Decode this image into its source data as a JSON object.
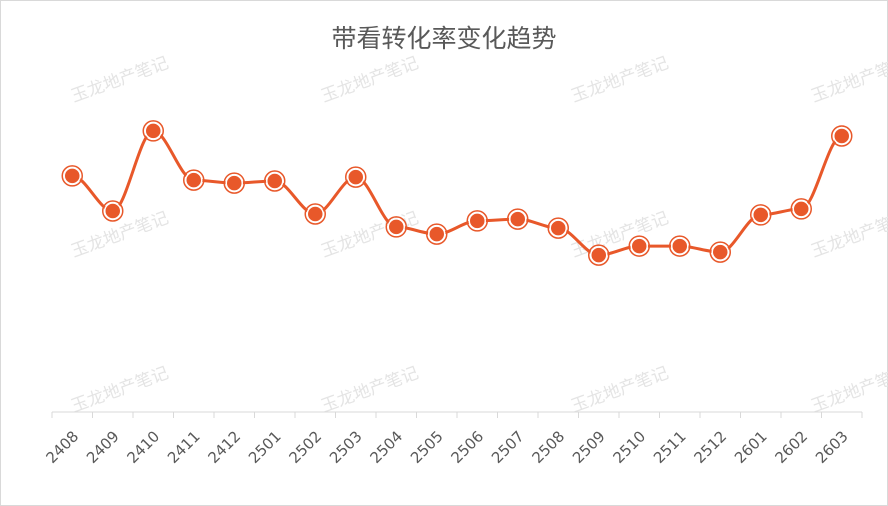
{
  "chart_data": {
    "type": "line",
    "title": "带看转化率变化趋势",
    "watermark": "玉龙地产笔记",
    "categories": [
      "2408",
      "2409",
      "2410",
      "2411",
      "2412",
      "2501",
      "2502",
      "2503",
      "2504",
      "2505",
      "2506",
      "2507",
      "2508",
      "2509",
      "2510",
      "2511",
      "2512",
      "2601",
      "2602",
      "2603"
    ],
    "values": [
      78.7,
      67,
      93.7,
      77.3,
      76.3,
      77,
      66,
      78.3,
      61.7,
      59.3,
      63.7,
      64.3,
      61.3,
      52.3,
      55.3,
      55.3,
      53.3,
      65.7,
      67.7,
      92
    ],
    "color": "#e8582a",
    "ylim": [
      0,
      100
    ]
  }
}
